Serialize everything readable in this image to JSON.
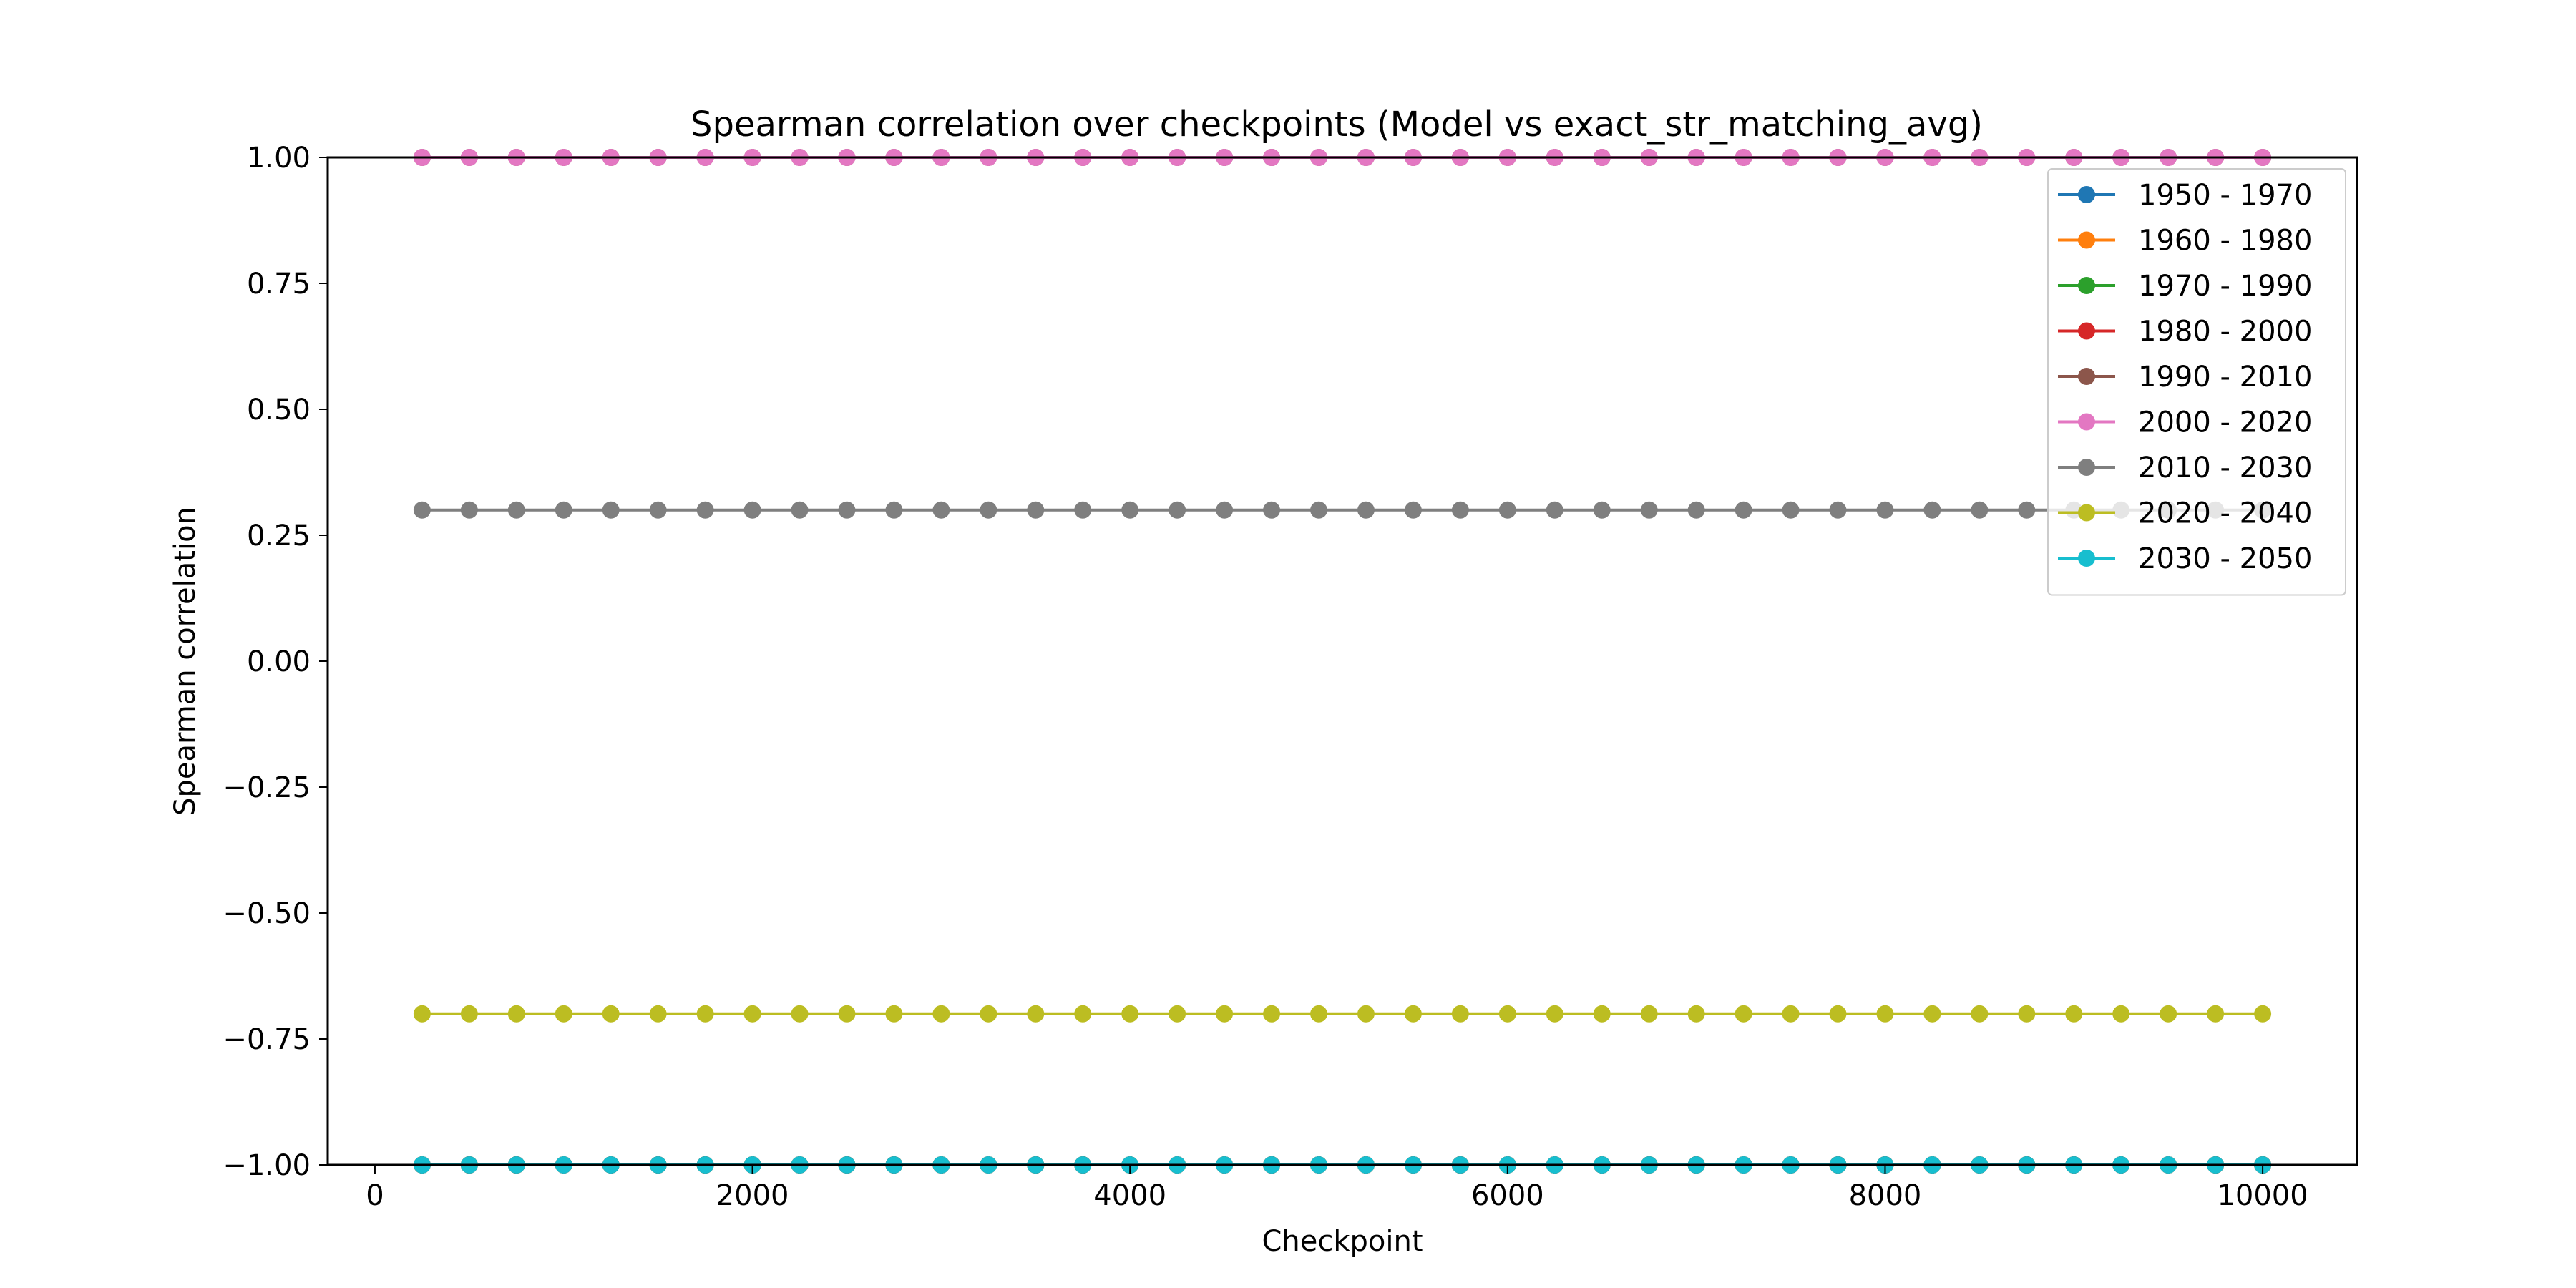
{
  "chart_data": {
    "type": "line",
    "title": "Spearman correlation over checkpoints (Model vs exact_str_matching_avg)",
    "xlabel": "Checkpoint",
    "ylabel": "Spearman correlation",
    "xlim": [
      -250,
      10500
    ],
    "ylim": [
      -1.0,
      1.0
    ],
    "x_ticks": [
      0,
      2000,
      4000,
      6000,
      8000,
      10000
    ],
    "x_tick_labels": [
      "0",
      "2000",
      "4000",
      "6000",
      "8000",
      "10000"
    ],
    "y_ticks": [
      -1.0,
      -0.75,
      -0.5,
      -0.25,
      0.0,
      0.25,
      0.5,
      0.75,
      1.0
    ],
    "y_tick_labels": [
      "−1.00",
      "−0.75",
      "−0.50",
      "−0.25",
      "0.00",
      "0.25",
      "0.50",
      "0.75",
      "1.00"
    ],
    "grid": false,
    "legend_position": "top-right",
    "x": [
      250,
      500,
      750,
      1000,
      1250,
      1500,
      1750,
      2000,
      2250,
      2500,
      2750,
      3000,
      3250,
      3500,
      3750,
      4000,
      4250,
      4500,
      4750,
      5000,
      5250,
      5500,
      5750,
      6000,
      6250,
      6500,
      6750,
      7000,
      7250,
      7500,
      7750,
      8000,
      8250,
      8500,
      8750,
      9000,
      9250,
      9500,
      9750,
      10000
    ],
    "series": [
      {
        "name": "1950 - 1970",
        "color": "#1f77b4",
        "value": -1.0
      },
      {
        "name": "1960 - 1980",
        "color": "#ff7f0e",
        "value": -1.0
      },
      {
        "name": "1970 - 1990",
        "color": "#2ca02c",
        "value": -1.0
      },
      {
        "name": "1980 - 2000",
        "color": "#d62728",
        "value": -1.0
      },
      {
        "name": "1990 - 2010",
        "color": "#8c564b",
        "value": 1.0
      },
      {
        "name": "2000 - 2020",
        "color": "#e377c2",
        "value": 1.0
      },
      {
        "name": "2010 - 2030",
        "color": "#7f7f7f",
        "value": 0.3
      },
      {
        "name": "2020 - 2040",
        "color": "#bcbd22",
        "value": -0.7
      },
      {
        "name": "2030 - 2050",
        "color": "#17becf",
        "value": -1.0
      }
    ]
  }
}
